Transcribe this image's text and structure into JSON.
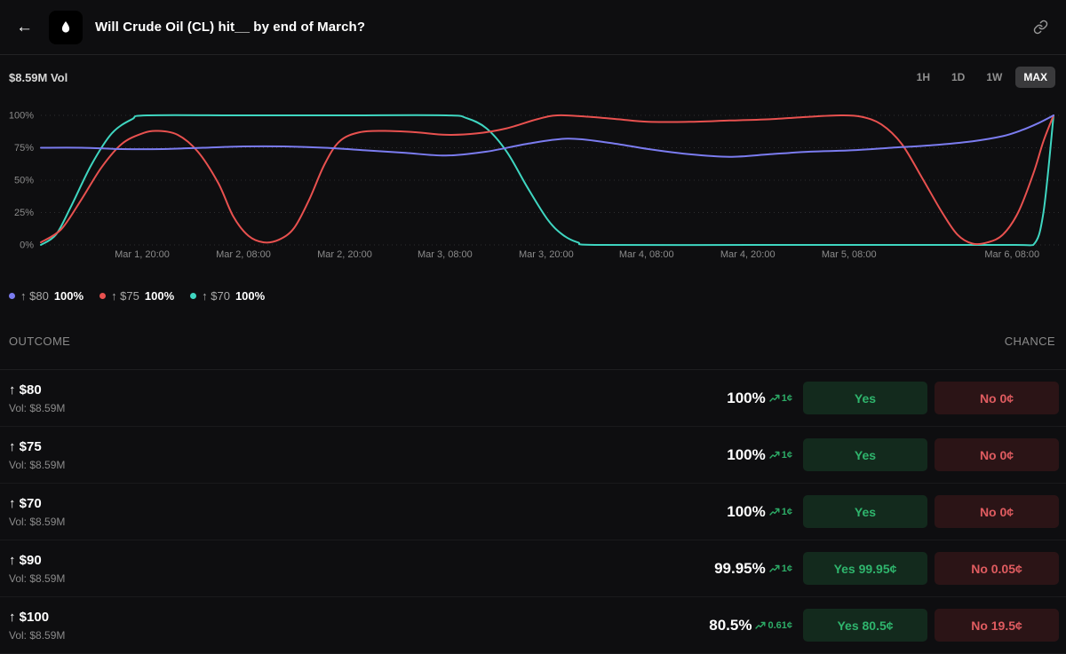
{
  "icons": {
    "back": "←"
  },
  "header": {
    "title": "Will Crude Oil (CL) hit__ by end of March?"
  },
  "chart": {
    "volume_label": "$8.59M Vol",
    "ranges": [
      "1H",
      "1D",
      "1W",
      "MAX"
    ],
    "active_range": "MAX"
  },
  "chart_data": {
    "type": "line",
    "ylim": [
      0,
      100
    ],
    "grid": "dotted-horizontal",
    "legend_position": "below",
    "y_ticks": [
      {
        "label": "100%",
        "value": 100
      },
      {
        "label": "75%",
        "value": 75
      },
      {
        "label": "50%",
        "value": 50
      },
      {
        "label": "25%",
        "value": 25
      },
      {
        "label": "0%",
        "value": 0
      }
    ],
    "x_ticks": [
      {
        "label": "Mar 1, 20:00",
        "pos": 0.1
      },
      {
        "label": "Mar 2, 08:00",
        "pos": 0.2
      },
      {
        "label": "Mar 2, 20:00",
        "pos": 0.3
      },
      {
        "label": "Mar 3, 08:00",
        "pos": 0.399
      },
      {
        "label": "Mar 3, 20:00",
        "pos": 0.499
      },
      {
        "label": "Mar 4, 08:00",
        "pos": 0.598
      },
      {
        "label": "Mar 4, 20:00",
        "pos": 0.698
      },
      {
        "label": "Mar 5, 08:00",
        "pos": 0.798
      },
      {
        "label": "Mar 6, 08:00",
        "pos": 0.959
      }
    ],
    "series": [
      {
        "name": "↑ $70",
        "color": "#3fd6c1",
        "current": "100%",
        "points": [
          [
            0,
            0
          ],
          [
            0.015,
            8
          ],
          [
            0.03,
            30
          ],
          [
            0.05,
            62
          ],
          [
            0.07,
            86
          ],
          [
            0.09,
            97
          ],
          [
            0.105,
            100
          ],
          [
            0.2,
            100
          ],
          [
            0.3,
            100
          ],
          [
            0.4,
            100
          ],
          [
            0.42,
            98
          ],
          [
            0.44,
            90
          ],
          [
            0.46,
            72
          ],
          [
            0.48,
            45
          ],
          [
            0.5,
            20
          ],
          [
            0.515,
            8
          ],
          [
            0.53,
            2
          ],
          [
            0.55,
            0
          ],
          [
            0.7,
            0
          ],
          [
            0.85,
            0
          ],
          [
            0.96,
            0
          ],
          [
            0.98,
            0
          ],
          [
            0.99,
            25
          ],
          [
            1,
            100
          ]
        ]
      },
      {
        "name": "↑ $75",
        "color": "#e8514f",
        "current": "100%",
        "points": [
          [
            0,
            2
          ],
          [
            0.02,
            12
          ],
          [
            0.04,
            35
          ],
          [
            0.06,
            60
          ],
          [
            0.08,
            78
          ],
          [
            0.1,
            86
          ],
          [
            0.115,
            88
          ],
          [
            0.135,
            85
          ],
          [
            0.155,
            72
          ],
          [
            0.175,
            48
          ],
          [
            0.19,
            22
          ],
          [
            0.205,
            7
          ],
          [
            0.22,
            2
          ],
          [
            0.235,
            4
          ],
          [
            0.25,
            13
          ],
          [
            0.265,
            35
          ],
          [
            0.28,
            62
          ],
          [
            0.295,
            80
          ],
          [
            0.315,
            87
          ],
          [
            0.34,
            88
          ],
          [
            0.37,
            87
          ],
          [
            0.4,
            85
          ],
          [
            0.43,
            86
          ],
          [
            0.46,
            90
          ],
          [
            0.49,
            97
          ],
          [
            0.51,
            100
          ],
          [
            0.54,
            99
          ],
          [
            0.57,
            97
          ],
          [
            0.6,
            95
          ],
          [
            0.64,
            95
          ],
          [
            0.68,
            96
          ],
          [
            0.72,
            97
          ],
          [
            0.76,
            99
          ],
          [
            0.79,
            100
          ],
          [
            0.81,
            99
          ],
          [
            0.83,
            93
          ],
          [
            0.85,
            78
          ],
          [
            0.87,
            52
          ],
          [
            0.89,
            25
          ],
          [
            0.905,
            8
          ],
          [
            0.92,
            1
          ],
          [
            0.935,
            2
          ],
          [
            0.95,
            8
          ],
          [
            0.965,
            25
          ],
          [
            0.98,
            55
          ],
          [
            0.99,
            80
          ],
          [
            1,
            100
          ]
        ]
      },
      {
        "name": "↑ $80",
        "color": "#7b7cf0",
        "current": "100%",
        "points": [
          [
            0,
            75
          ],
          [
            0.04,
            75
          ],
          [
            0.08,
            74
          ],
          [
            0.12,
            74
          ],
          [
            0.16,
            75
          ],
          [
            0.2,
            76
          ],
          [
            0.24,
            76
          ],
          [
            0.28,
            75
          ],
          [
            0.32,
            73
          ],
          [
            0.36,
            71
          ],
          [
            0.4,
            69
          ],
          [
            0.44,
            72
          ],
          [
            0.48,
            78
          ],
          [
            0.52,
            82
          ],
          [
            0.56,
            79
          ],
          [
            0.6,
            74
          ],
          [
            0.64,
            70
          ],
          [
            0.68,
            68
          ],
          [
            0.72,
            70
          ],
          [
            0.76,
            72
          ],
          [
            0.8,
            73
          ],
          [
            0.84,
            75
          ],
          [
            0.88,
            77
          ],
          [
            0.92,
            80
          ],
          [
            0.95,
            84
          ],
          [
            0.97,
            89
          ],
          [
            0.985,
            94
          ],
          [
            1,
            100
          ]
        ]
      }
    ]
  },
  "legend": [
    {
      "label": "↑ $80",
      "value": "100%",
      "color": "#7b7cf0"
    },
    {
      "label": "↑ $75",
      "value": "100%",
      "color": "#e8514f"
    },
    {
      "label": "↑ $70",
      "value": "100%",
      "color": "#3fd6c1"
    }
  ],
  "table": {
    "outcome_header": "OUTCOME",
    "chance_header": "CHANCE",
    "rows": [
      {
        "outcome": "↑ $80",
        "volume": "Vol: $8.59M",
        "chance": "100%",
        "trend": "1¢",
        "yes_label": "Yes",
        "no_label": "No 0¢"
      },
      {
        "outcome": "↑ $75",
        "volume": "Vol: $8.59M",
        "chance": "100%",
        "trend": "1¢",
        "yes_label": "Yes",
        "no_label": "No 0¢"
      },
      {
        "outcome": "↑ $70",
        "volume": "Vol: $8.59M",
        "chance": "100%",
        "trend": "1¢",
        "yes_label": "Yes",
        "no_label": "No 0¢"
      },
      {
        "outcome": "↑ $90",
        "volume": "Vol: $8.59M",
        "chance": "99.95%",
        "trend": "1¢",
        "yes_label": "Yes 99.95¢",
        "no_label": "No 0.05¢"
      },
      {
        "outcome": "↑ $100",
        "volume": "Vol: $8.59M",
        "chance": "80.5%",
        "trend": "0.61¢",
        "yes_label": "Yes 80.5¢",
        "no_label": "No 19.5¢"
      }
    ]
  },
  "colors": {
    "background": "#0e0e10",
    "yes_green": "#2fb56d",
    "no_red": "#e05c60",
    "accent_blue": "#7b7cf0",
    "accent_red": "#e8514f",
    "accent_teal": "#3fd6c1"
  }
}
